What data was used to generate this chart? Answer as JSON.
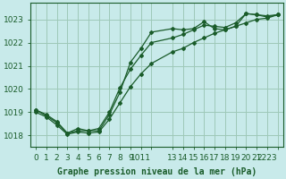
{
  "background_color": "#c8eaea",
  "grid_color": "#9ec8b8",
  "line_color": "#1a5c2a",
  "title": "Graphe pression niveau de la mer (hPa)",
  "xlabel_fontsize": 6.5,
  "ylabel_fontsize": 6.5,
  "title_fontsize": 7,
  "xlim": [
    -0.5,
    23.5
  ],
  "ylim": [
    1017.5,
    1023.7
  ],
  "yticks": [
    1018,
    1019,
    1020,
    1021,
    1022,
    1023
  ],
  "line1_x": [
    0,
    1,
    2,
    3,
    4,
    5,
    6,
    7,
    8,
    9,
    10,
    11,
    13,
    14,
    15,
    16,
    17,
    18,
    19,
    20,
    21,
    22,
    23
  ],
  "line1_y": [
    1019.1,
    1018.85,
    1018.55,
    1018.1,
    1018.2,
    1018.2,
    1018.2,
    1018.9,
    1019.85,
    1021.15,
    1021.75,
    1022.45,
    1022.6,
    1022.55,
    1022.6,
    1022.9,
    1022.6,
    1022.55,
    1022.7,
    1023.25,
    1023.2,
    1023.15,
    1023.2
  ],
  "line2_x": [
    0,
    1,
    2,
    3,
    4,
    5,
    6,
    7,
    8,
    9,
    10,
    11,
    13,
    14,
    15,
    16,
    17,
    18,
    19,
    20,
    21,
    22,
    23
  ],
  "line2_y": [
    1019.1,
    1018.9,
    1018.6,
    1018.1,
    1018.3,
    1018.2,
    1018.3,
    1019.0,
    1020.05,
    1020.85,
    1021.45,
    1022.0,
    1022.2,
    1022.35,
    1022.55,
    1022.75,
    1022.7,
    1022.65,
    1022.85,
    1023.25,
    1023.2,
    1023.1,
    1023.2
  ],
  "line3_x": [
    0,
    1,
    2,
    3,
    4,
    5,
    6,
    7,
    8,
    9,
    10,
    11,
    13,
    14,
    15,
    16,
    17,
    18,
    19,
    20,
    21,
    22,
    23
  ],
  "line3_y": [
    1019.0,
    1018.8,
    1018.45,
    1018.05,
    1018.15,
    1018.1,
    1018.15,
    1018.7,
    1019.4,
    1020.1,
    1020.65,
    1021.1,
    1021.6,
    1021.75,
    1022.0,
    1022.2,
    1022.4,
    1022.55,
    1022.7,
    1022.85,
    1023.0,
    1023.05,
    1023.2
  ]
}
